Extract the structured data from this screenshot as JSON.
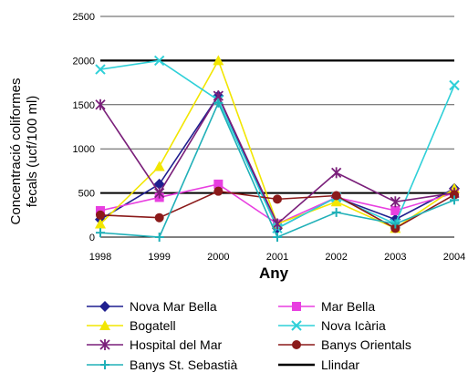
{
  "chart_data": {
    "type": "line",
    "title": "",
    "xlabel": "Any",
    "ylabel_line1": "Concentració coliformes",
    "ylabel_line2": "fecals (ucf/100 ml)",
    "x": [
      "1998",
      "1999",
      "2000",
      "2001",
      "2002",
      "2003",
      "2004"
    ],
    "ylim": [
      0,
      2500
    ],
    "yticks": [
      "0",
      "500",
      "1000",
      "1500",
      "2000",
      "2500"
    ],
    "grid": true,
    "legend_position": "bottom",
    "series": [
      {
        "name": "Nova Mar Bella",
        "color": "#1f1f8f",
        "marker": "diamond",
        "values": [
          200,
          600,
          1600,
          100,
          450,
          200,
          550
        ]
      },
      {
        "name": "Mar Bella",
        "color": "#e83fe0",
        "marker": "square",
        "values": [
          300,
          450,
          600,
          150,
          450,
          300,
          500
        ]
      },
      {
        "name": "Bogatell",
        "color": "#f2e600",
        "marker": "triangle",
        "values": [
          150,
          800,
          2000,
          150,
          400,
          100,
          550
        ]
      },
      {
        "name": "Nova Icària",
        "color": "#2fd0d8",
        "marker": "xmark",
        "values": [
          1900,
          2000,
          1550,
          100,
          450,
          150,
          1720
        ]
      },
      {
        "name": "Hospital del Mar",
        "color": "#7a1f7a",
        "marker": "star",
        "values": [
          1500,
          500,
          1600,
          150,
          730,
          400,
          500
        ]
      },
      {
        "name": "Banys Orientals",
        "color": "#8b1a1a",
        "marker": "circle",
        "values": [
          250,
          220,
          520,
          430,
          470,
          100,
          480
        ]
      },
      {
        "name": "Banys St. Sebastià",
        "color": "#20b0b8",
        "marker": "plus",
        "values": [
          50,
          0,
          1520,
          0,
          280,
          150,
          420
        ]
      }
    ],
    "threshold": {
      "name": "Llindar",
      "value": 500,
      "color": "#000000"
    },
    "major_line": {
      "value": 2000,
      "color": "#000000"
    }
  }
}
